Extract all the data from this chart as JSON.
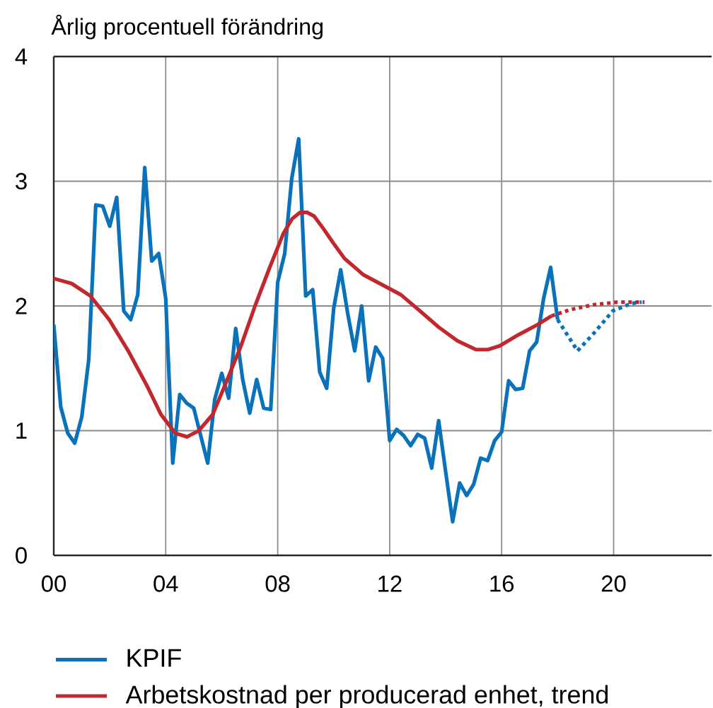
{
  "chart_data": {
    "type": "line",
    "ylabel": "Årlig procentuell förändring",
    "xlim": [
      2000,
      2023.5
    ],
    "xticks": [
      {
        "value": 2000,
        "label": "00"
      },
      {
        "value": 2004,
        "label": "04"
      },
      {
        "value": 2008,
        "label": "08"
      },
      {
        "value": 2012,
        "label": "12"
      },
      {
        "value": 2016,
        "label": "16"
      },
      {
        "value": 2020,
        "label": "20"
      }
    ],
    "ylim": [
      0,
      4
    ],
    "yticks": [
      0,
      1,
      2,
      3,
      4
    ],
    "grid": true,
    "legend": "bottom",
    "marker": "none",
    "line_style": "solid",
    "series": [
      {
        "name": "KPIF",
        "color": "#0a72ba",
        "x": [
          2000,
          2000.25,
          2000.5,
          2000.75,
          2001,
          2001.25,
          2001.5,
          2001.75,
          2002,
          2002.25,
          2002.5,
          2002.75,
          2003,
          2003.25,
          2003.5,
          2003.75,
          2004,
          2004.25,
          2004.5,
          2004.75,
          2005,
          2005.25,
          2005.5,
          2005.75,
          2006,
          2006.25,
          2006.5,
          2006.75,
          2007,
          2007.25,
          2007.5,
          2007.75,
          2008,
          2008.25,
          2008.5,
          2008.75,
          2009,
          2009.25,
          2009.5,
          2009.75,
          2010,
          2010.25,
          2010.5,
          2010.75,
          2011,
          2011.25,
          2011.5,
          2011.75,
          2012,
          2012.25,
          2012.5,
          2012.75,
          2013,
          2013.25,
          2013.5,
          2013.75,
          2014,
          2014.25,
          2014.5,
          2014.75,
          2015,
          2015.25,
          2015.5,
          2015.75,
          2016,
          2016.25,
          2016.5,
          2016.75,
          2017,
          2017.25,
          2017.5,
          2017.75,
          2018
        ],
        "values": [
          1.85,
          1.19,
          0.98,
          0.9,
          1.11,
          1.57,
          2.81,
          2.8,
          2.64,
          2.87,
          1.96,
          1.89,
          2.09,
          3.11,
          2.36,
          2.42,
          2.06,
          0.74,
          1.29,
          1.22,
          1.18,
          0.96,
          0.74,
          1.25,
          1.46,
          1.26,
          1.82,
          1.41,
          1.14,
          1.41,
          1.18,
          1.17,
          2.19,
          2.42,
          3.02,
          3.34,
          2.08,
          2.13,
          1.47,
          1.34,
          1.98,
          2.29,
          1.94,
          1.64,
          2.0,
          1.4,
          1.67,
          1.58,
          0.92,
          1.01,
          0.96,
          0.88,
          0.97,
          0.94,
          0.7,
          1.08,
          0.67,
          0.27,
          0.58,
          0.48,
          0.57,
          0.78,
          0.76,
          0.92,
          0.99,
          1.4,
          1.33,
          1.34,
          1.64,
          1.71,
          2.06,
          2.31,
          1.89
        ]
      },
      {
        "name": "Arbetskostnad per producerad enhet, trend",
        "color": "#c1272d",
        "x": [
          2000,
          2000.64,
          2001.31,
          2001.98,
          2002.66,
          2003.33,
          2003.83,
          2004.34,
          2004.76,
          2005.18,
          2005.68,
          2006.18,
          2006.69,
          2007.19,
          2007.7,
          2008.2,
          2008.52,
          2008.8,
          2009.05,
          2009.3,
          2009.63,
          2010,
          2010.39,
          2011.06,
          2011.73,
          2012.4,
          2013.08,
          2013.75,
          2014.42,
          2015.09,
          2015.51,
          2015.93,
          2016.61,
          2017.28,
          2017.78
        ],
        "values": [
          2.22,
          2.18,
          2.08,
          1.89,
          1.64,
          1.36,
          1.13,
          0.98,
          0.95,
          1.0,
          1.13,
          1.4,
          1.68,
          2.0,
          2.3,
          2.58,
          2.7,
          2.75,
          2.75,
          2.72,
          2.62,
          2.5,
          2.38,
          2.25,
          2.17,
          2.09,
          1.96,
          1.83,
          1.72,
          1.65,
          1.65,
          1.68,
          1.77,
          1.85,
          1.92
        ]
      },
      {
        "color": "#0a72ba",
        "line_style": "dotted",
        "x": [
          2018,
          2018.71,
          2019.29,
          2019.97,
          2020.64,
          2021
        ],
        "values": [
          1.89,
          1.64,
          1.78,
          1.96,
          2.02,
          2.03
        ]
      },
      {
        "color": "#c1272d",
        "line_style": "dotted",
        "x": [
          2017.78,
          2018.45,
          2019.29,
          2020.13,
          2021.1
        ],
        "values": [
          1.92,
          1.97,
          2.01,
          2.03,
          2.03
        ]
      }
    ]
  }
}
